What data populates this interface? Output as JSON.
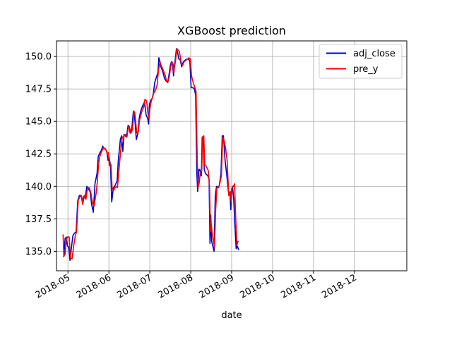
{
  "chart_data": {
    "type": "line",
    "title": "XGBoost prediction",
    "xlabel": "date",
    "ylabel": "",
    "grid": true,
    "legend_position": "top-right",
    "xlim": [
      -1.4,
      41.4
    ],
    "ylim": [
      133.5,
      151.2
    ],
    "x_ticks": [
      {
        "label": "2018-05",
        "value": 0
      },
      {
        "label": "2018-06",
        "value": 5
      },
      {
        "label": "2018-07",
        "value": 10
      },
      {
        "label": "2018-08",
        "value": 15
      },
      {
        "label": "2018-09",
        "value": 20
      },
      {
        "label": "2018-10",
        "value": 25
      },
      {
        "label": "2018-11",
        "value": 30
      },
      {
        "label": "2018-12",
        "value": 35
      }
    ],
    "y_ticks": [
      {
        "label": "135.0",
        "value": 135.0
      },
      {
        "label": "137.5",
        "value": 137.5
      },
      {
        "label": "140.0",
        "value": 140.0
      },
      {
        "label": "142.5",
        "value": 142.5
      },
      {
        "label": "145.0",
        "value": 145.0
      },
      {
        "label": "147.5",
        "value": 147.5
      },
      {
        "label": "150.0",
        "value": 150.0
      }
    ],
    "series": [
      {
        "name": "adj_close",
        "color": "#0000cc",
        "points": [
          [
            -0.6,
            134.6
          ],
          [
            -0.5,
            134.6
          ],
          [
            -0.35,
            136.0
          ],
          [
            -0.2,
            136.1
          ],
          [
            -0.05,
            135.4
          ],
          [
            0.1,
            135.3
          ],
          [
            0.25,
            134.3
          ],
          [
            0.45,
            135.4
          ],
          [
            0.6,
            136.2
          ],
          [
            0.8,
            136.4
          ],
          [
            1.0,
            136.5
          ],
          [
            1.2,
            138.9
          ],
          [
            1.4,
            139.3
          ],
          [
            1.6,
            139.3
          ],
          [
            1.75,
            138.8
          ],
          [
            1.9,
            139.2
          ],
          [
            2.1,
            139.1
          ],
          [
            2.3,
            140.0
          ],
          [
            2.5,
            139.8
          ],
          [
            2.7,
            139.6
          ],
          [
            2.9,
            138.6
          ],
          [
            3.1,
            138.0
          ],
          [
            3.3,
            140.2
          ],
          [
            3.55,
            141.0
          ],
          [
            3.7,
            142.3
          ],
          [
            3.85,
            142.5
          ],
          [
            4.0,
            142.7
          ],
          [
            4.1,
            142.8
          ],
          [
            4.25,
            143.1
          ],
          [
            4.4,
            142.9
          ],
          [
            4.55,
            142.9
          ],
          [
            4.75,
            142.7
          ],
          [
            4.9,
            142.0
          ],
          [
            5.0,
            142.3
          ],
          [
            5.2,
            141.6
          ],
          [
            5.35,
            138.8
          ],
          [
            5.55,
            139.9
          ],
          [
            5.7,
            140.0
          ],
          [
            5.85,
            140.2
          ],
          [
            6.0,
            140.4
          ],
          [
            6.15,
            142.0
          ],
          [
            6.4,
            143.6
          ],
          [
            6.55,
            143.9
          ],
          [
            6.7,
            142.7
          ],
          [
            6.85,
            144.0
          ],
          [
            7.0,
            143.9
          ],
          [
            7.15,
            143.8
          ],
          [
            7.35,
            144.7
          ],
          [
            7.5,
            144.6
          ],
          [
            7.6,
            144.1
          ],
          [
            7.8,
            144.4
          ],
          [
            8.0,
            145.8
          ],
          [
            8.1,
            145.6
          ],
          [
            8.2,
            144.9
          ],
          [
            8.35,
            143.6
          ],
          [
            8.55,
            144.1
          ],
          [
            8.7,
            145.2
          ],
          [
            8.85,
            145.7
          ],
          [
            9.0,
            146.0
          ],
          [
            9.2,
            146.3
          ],
          [
            9.35,
            146.5
          ],
          [
            9.55,
            145.5
          ],
          [
            9.75,
            145.2
          ],
          [
            9.85,
            144.8
          ],
          [
            9.95,
            146.3
          ],
          [
            10.1,
            146.6
          ],
          [
            10.3,
            146.8
          ],
          [
            10.45,
            147.2
          ],
          [
            10.6,
            148.0
          ],
          [
            10.85,
            148.5
          ],
          [
            11.0,
            148.8
          ],
          [
            11.1,
            149.9
          ],
          [
            11.2,
            149.7
          ],
          [
            11.35,
            149.2
          ],
          [
            11.55,
            148.9
          ],
          [
            11.8,
            148.3
          ],
          [
            12.0,
            148.1
          ],
          [
            12.2,
            148.0
          ],
          [
            12.35,
            148.6
          ],
          [
            12.5,
            149.3
          ],
          [
            12.65,
            149.6
          ],
          [
            12.8,
            149.3
          ],
          [
            12.9,
            148.5
          ],
          [
            13.0,
            149.3
          ],
          [
            13.1,
            149.7
          ],
          [
            13.25,
            150.6
          ],
          [
            13.4,
            150.3
          ],
          [
            13.55,
            149.8
          ],
          [
            13.7,
            149.8
          ],
          [
            13.8,
            149.5
          ],
          [
            13.9,
            149.2
          ],
          [
            14.1,
            149.6
          ],
          [
            14.3,
            149.7
          ],
          [
            14.5,
            149.8
          ],
          [
            14.75,
            149.8
          ],
          [
            14.9,
            149.6
          ],
          [
            15.05,
            147.6
          ],
          [
            15.25,
            147.6
          ],
          [
            15.45,
            147.5
          ],
          [
            15.6,
            147.0
          ],
          [
            15.75,
            141.0
          ],
          [
            15.85,
            139.6
          ],
          [
            16.0,
            141.3
          ],
          [
            16.1,
            141.3
          ],
          [
            16.3,
            140.8
          ],
          [
            16.4,
            143.8
          ],
          [
            16.55,
            143.8
          ],
          [
            16.65,
            141.3
          ],
          [
            16.8,
            141.0
          ],
          [
            16.95,
            140.9
          ],
          [
            17.1,
            140.8
          ],
          [
            17.25,
            140.5
          ],
          [
            17.35,
            135.6
          ],
          [
            17.45,
            137.8
          ],
          [
            17.55,
            135.8
          ],
          [
            17.7,
            135.4
          ],
          [
            17.85,
            135.0
          ],
          [
            18.0,
            139.3
          ],
          [
            18.15,
            140.0
          ],
          [
            18.35,
            139.9
          ],
          [
            18.5,
            140.1
          ],
          [
            18.7,
            141.0
          ],
          [
            18.85,
            143.9
          ],
          [
            19.0,
            143.9
          ],
          [
            19.2,
            142.0
          ],
          [
            19.4,
            140.9
          ],
          [
            19.6,
            139.6
          ],
          [
            19.8,
            139.4
          ],
          [
            19.9,
            138.2
          ],
          [
            20.0,
            139.8
          ],
          [
            20.1,
            140.0
          ],
          [
            20.25,
            139.0
          ],
          [
            20.4,
            137.0
          ],
          [
            20.55,
            135.2
          ],
          [
            20.7,
            135.4
          ],
          [
            20.85,
            135.1
          ]
        ]
      },
      {
        "name": "pre_y",
        "color": "#ff0000",
        "points": [
          [
            -0.6,
            136.3
          ],
          [
            -0.5,
            134.6
          ],
          [
            -0.35,
            134.8
          ],
          [
            -0.2,
            135.9
          ],
          [
            -0.05,
            136.1
          ],
          [
            0.15,
            136.1
          ],
          [
            0.3,
            134.5
          ],
          [
            0.5,
            134.4
          ],
          [
            0.7,
            135.4
          ],
          [
            0.9,
            136.2
          ],
          [
            1.05,
            136.5
          ],
          [
            1.25,
            138.9
          ],
          [
            1.45,
            139.2
          ],
          [
            1.65,
            139.3
          ],
          [
            1.8,
            138.6
          ],
          [
            2.0,
            139.3
          ],
          [
            2.2,
            139.0
          ],
          [
            2.4,
            139.9
          ],
          [
            2.6,
            139.9
          ],
          [
            2.8,
            139.5
          ],
          [
            3.0,
            138.7
          ],
          [
            3.2,
            138.5
          ],
          [
            3.45,
            139.5
          ],
          [
            3.6,
            140.4
          ],
          [
            3.75,
            141.8
          ],
          [
            3.9,
            142.3
          ],
          [
            4.05,
            142.6
          ],
          [
            4.2,
            142.8
          ],
          [
            4.35,
            143.0
          ],
          [
            4.5,
            142.9
          ],
          [
            4.65,
            142.8
          ],
          [
            4.8,
            142.5
          ],
          [
            4.95,
            142.6
          ],
          [
            5.05,
            141.6
          ],
          [
            5.25,
            141.7
          ],
          [
            5.4,
            139.8
          ],
          [
            5.6,
            139.7
          ],
          [
            5.75,
            139.9
          ],
          [
            5.9,
            140.0
          ],
          [
            6.05,
            139.9
          ],
          [
            6.25,
            141.4
          ],
          [
            6.5,
            143.2
          ],
          [
            6.65,
            143.8
          ],
          [
            6.75,
            143.8
          ],
          [
            6.9,
            143.9
          ],
          [
            7.05,
            144.0
          ],
          [
            7.2,
            143.8
          ],
          [
            7.4,
            144.6
          ],
          [
            7.55,
            144.5
          ],
          [
            7.7,
            144.1
          ],
          [
            7.9,
            144.4
          ],
          [
            8.05,
            145.8
          ],
          [
            8.15,
            145.7
          ],
          [
            8.25,
            145.2
          ],
          [
            8.4,
            144.1
          ],
          [
            8.6,
            144.2
          ],
          [
            8.75,
            145.1
          ],
          [
            8.9,
            145.5
          ],
          [
            9.05,
            145.8
          ],
          [
            9.25,
            146.1
          ],
          [
            9.4,
            146.7
          ],
          [
            9.6,
            146.6
          ],
          [
            9.8,
            145.5
          ],
          [
            9.9,
            145.2
          ],
          [
            10.0,
            145.9
          ],
          [
            10.15,
            146.5
          ],
          [
            10.35,
            146.9
          ],
          [
            10.5,
            147.2
          ],
          [
            10.7,
            147.4
          ],
          [
            10.9,
            147.8
          ],
          [
            11.05,
            148.9
          ],
          [
            11.25,
            149.6
          ],
          [
            11.4,
            149.3
          ],
          [
            11.6,
            149.0
          ],
          [
            11.85,
            148.6
          ],
          [
            12.05,
            148.1
          ],
          [
            12.25,
            148.1
          ],
          [
            12.4,
            148.5
          ],
          [
            12.55,
            149.2
          ],
          [
            12.7,
            149.6
          ],
          [
            12.85,
            149.4
          ],
          [
            12.95,
            148.8
          ],
          [
            13.05,
            149.3
          ],
          [
            13.15,
            149.7
          ],
          [
            13.3,
            150.6
          ],
          [
            13.45,
            150.5
          ],
          [
            13.6,
            150.4
          ],
          [
            13.75,
            149.9
          ],
          [
            13.85,
            149.5
          ],
          [
            14.0,
            149.3
          ],
          [
            14.2,
            149.6
          ],
          [
            14.4,
            149.7
          ],
          [
            14.6,
            149.8
          ],
          [
            14.8,
            149.9
          ],
          [
            14.95,
            149.8
          ],
          [
            15.1,
            148.5
          ],
          [
            15.3,
            148.0
          ],
          [
            15.5,
            147.6
          ],
          [
            15.65,
            147.3
          ],
          [
            15.8,
            142.0
          ],
          [
            15.9,
            139.9
          ],
          [
            16.05,
            140.3
          ],
          [
            16.15,
            141.0
          ],
          [
            16.35,
            141.2
          ],
          [
            16.45,
            143.8
          ],
          [
            16.6,
            143.9
          ],
          [
            16.7,
            141.7
          ],
          [
            16.85,
            141.6
          ],
          [
            17.0,
            141.4
          ],
          [
            17.15,
            141.2
          ],
          [
            17.3,
            140.0
          ],
          [
            17.4,
            136.5
          ],
          [
            17.5,
            137.2
          ],
          [
            17.6,
            136.5
          ],
          [
            17.75,
            135.9
          ],
          [
            17.9,
            135.3
          ],
          [
            18.05,
            138.2
          ],
          [
            18.2,
            139.9
          ],
          [
            18.4,
            139.9
          ],
          [
            18.55,
            140.2
          ],
          [
            18.75,
            140.8
          ],
          [
            18.9,
            143.8
          ],
          [
            19.05,
            143.6
          ],
          [
            19.25,
            143.0
          ],
          [
            19.45,
            142.0
          ],
          [
            19.65,
            139.3
          ],
          [
            19.85,
            139.6
          ],
          [
            19.95,
            138.8
          ],
          [
            20.05,
            139.9
          ],
          [
            20.2,
            140.0
          ],
          [
            20.35,
            140.2
          ],
          [
            20.5,
            137.5
          ],
          [
            20.65,
            135.5
          ],
          [
            20.8,
            135.8
          ]
        ]
      }
    ]
  }
}
